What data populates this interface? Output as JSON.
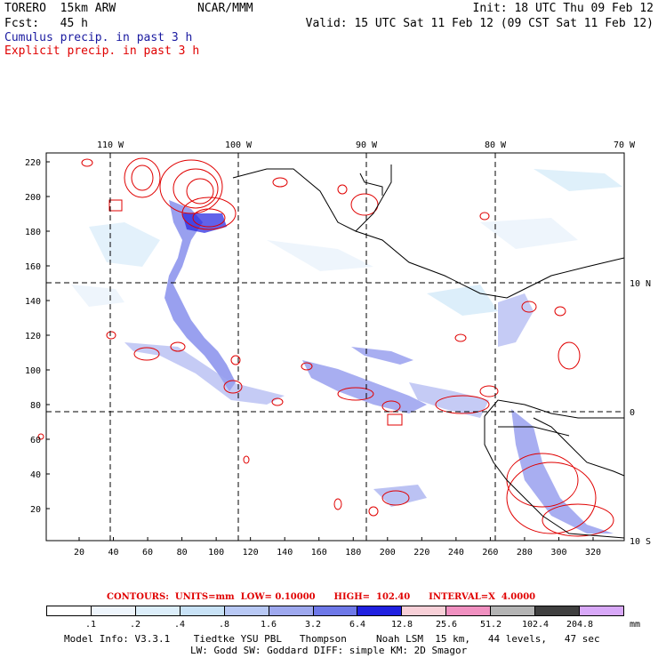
{
  "header": {
    "model": "TORERO  15km ARW",
    "org": "NCAR/MMM",
    "init": "Init: 18 UTC Thu 09 Feb 12",
    "fcst": "Fcst:   45 h",
    "valid": "Valid: 15 UTC Sat 11 Feb 12 (09 CST Sat 11 Feb 12)",
    "cumulus_label": "Cumulus precip. in past 3 h",
    "explicit_label": "Explicit precip. in past 3 h"
  },
  "axes": {
    "lon_labels": [
      "110 W",
      "100 W",
      "90 W",
      "80 W",
      "70 W"
    ],
    "lat_labels": [
      "10 N",
      "0",
      "10 S"
    ],
    "y_ticks": [
      "220",
      "200",
      "180",
      "160",
      "140",
      "120",
      "100",
      "80",
      "60",
      "40",
      "20"
    ],
    "x_ticks": [
      "20",
      "40",
      "60",
      "80",
      "100",
      "120",
      "140",
      "160",
      "180",
      "200",
      "220",
      "240",
      "260",
      "280",
      "300",
      "320"
    ]
  },
  "contour_info": "CONTOURS:  UNITS=mm  LOW= 0.10000      HIGH=  102.40      INTERVAL=X  4.0000",
  "legend": {
    "labels": [
      ".1",
      ".2",
      ".4",
      ".8",
      "1.6",
      "3.2",
      "6.4",
      "12.8",
      "25.6",
      "51.2",
      "102.4",
      "204.8"
    ],
    "unit": "mm",
    "colors": [
      "#ffffff",
      "#eef5fc",
      "#dceefa",
      "#c8e2f6",
      "#b8c8f4",
      "#9ea8ee",
      "#6e78e8",
      "#2020e0",
      "#f8d0d8",
      "#f090c0",
      "#b4b4b4",
      "#404040",
      "#d8a8f8"
    ]
  },
  "footer": {
    "line1": "Model Info: V3.3.1    Tiedtke YSU PBL   Thompson     Noah LSM  15 km,   44 levels,   47 sec",
    "line2": "LW: Godd SW: Goddard DIFF: simple KM: 2D Smagor"
  }
}
